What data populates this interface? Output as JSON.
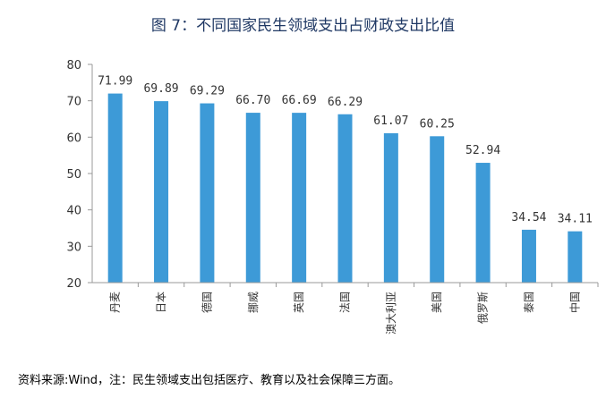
{
  "chart_data": {
    "type": "bar",
    "title": "图 7：不同国家民生领域支出占财政支出比值",
    "categories": [
      "丹麦",
      "日本",
      "德国",
      "挪威",
      "英国",
      "法国",
      "澳大利亚",
      "美国",
      "俄罗斯",
      "泰国",
      "中国"
    ],
    "values": [
      71.99,
      69.89,
      69.29,
      66.7,
      66.69,
      66.29,
      61.07,
      60.25,
      52.94,
      34.54,
      34.11
    ],
    "value_labels": [
      "71.99",
      "69.89",
      "69.29",
      "66.70",
      "66.69",
      "66.29",
      "61.07",
      "60.25",
      "52.94",
      "34.54",
      "34.11"
    ],
    "ylim": [
      20,
      80
    ],
    "yticks": [
      20,
      30,
      40,
      50,
      60,
      70,
      80
    ],
    "xlabel": "",
    "ylabel": "",
    "grid": false,
    "bar_color": "#3d9ad7"
  },
  "source_note": "资料来源:Wind，注：民生领域支出包括医疗、教育以及社会保障三方面。"
}
